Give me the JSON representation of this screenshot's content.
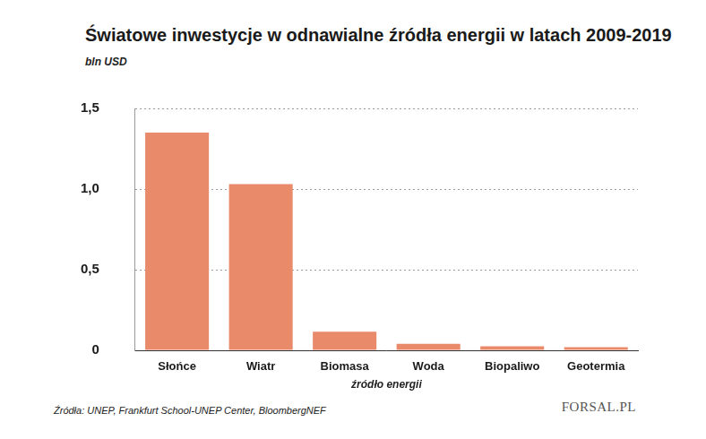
{
  "chart_data": {
    "type": "bar",
    "title": "Światowe inwestycje w odnawialne źródła energii w latach 2009-2019",
    "y_label": "bln USD",
    "x_label": "źródło energii",
    "source": "Źródła: UNEP, Frankfurt School-UNEP Center, BloombergNEF",
    "logo": "FORSAL.PL",
    "categories": [
      "Słońce",
      "Wiatr",
      "Biomasa",
      "Woda",
      "Biopaliwo",
      "Geotermia"
    ],
    "values": [
      1.35,
      1.03,
      0.115,
      0.04,
      0.025,
      0.02
    ],
    "color": "#e98a6b",
    "ylim": [
      0,
      1.5
    ],
    "yticks": [
      0,
      {
        "value": 0.5,
        "label": "0,5"
      },
      {
        "value": 1,
        "label": "1,0"
      },
      {
        "value": 1.5,
        "label": "1,5"
      }
    ],
    "grid": true
  }
}
